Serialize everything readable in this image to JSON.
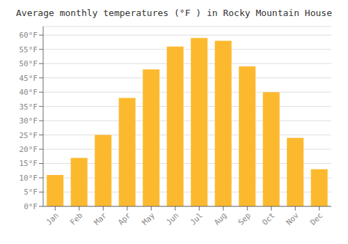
{
  "chart_data": {
    "type": "bar",
    "title": "Average monthly temperatures (°F ) in Rocky Mountain House",
    "categories": [
      "Jan",
      "Feb",
      "Mar",
      "Apr",
      "May",
      "Jun",
      "Jul",
      "Aug",
      "Sep",
      "Oct",
      "Nov",
      "Dec"
    ],
    "values": [
      11,
      17,
      25,
      38,
      48,
      56,
      59,
      58,
      49,
      40,
      24,
      13
    ],
    "color": "#FDB92E",
    "ylim": [
      0,
      63
    ],
    "yticks": [
      {
        "value": 0,
        "label": "0°F"
      },
      {
        "value": 5,
        "label": "5°F"
      },
      {
        "value": 10,
        "label": "10°F"
      },
      {
        "value": 15,
        "label": "15°F"
      },
      {
        "value": 20,
        "label": "20°F"
      },
      {
        "value": 25,
        "label": "25°F"
      },
      {
        "value": 30,
        "label": "30°F"
      },
      {
        "value": 35,
        "label": "35°F"
      },
      {
        "value": 40,
        "label": "40°F"
      },
      {
        "value": 45,
        "label": "45°F"
      },
      {
        "value": 50,
        "label": "50°F"
      },
      {
        "value": 55,
        "label": "55°F"
      },
      {
        "value": 60,
        "label": "60°F"
      }
    ],
    "grid": true
  }
}
